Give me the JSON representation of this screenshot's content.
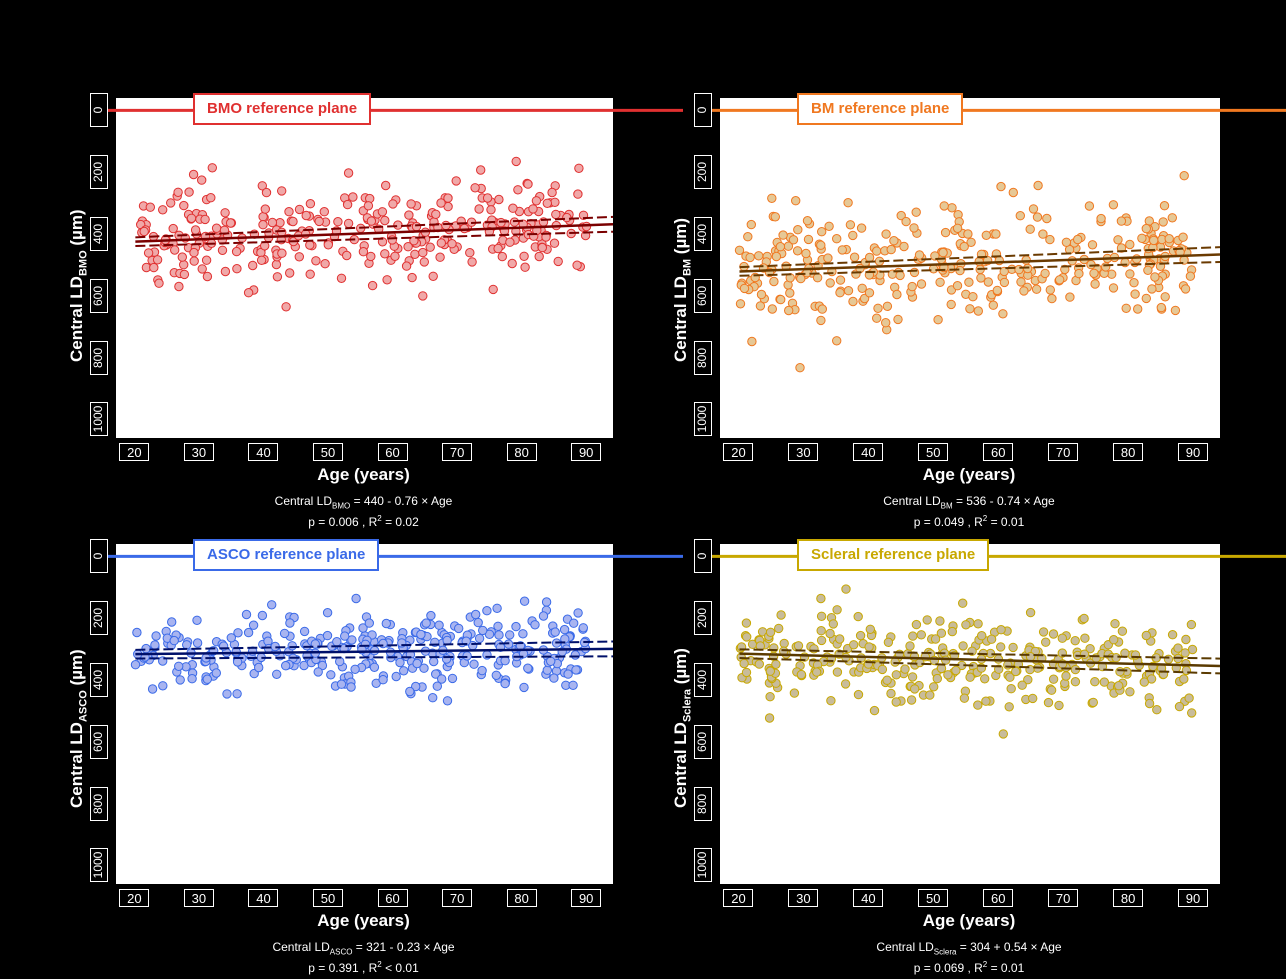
{
  "panels": [
    {
      "ref_label": "BMO reference plane",
      "ylabel_main": "Central LD",
      "ylabel_sub": "BMO",
      "ylabel_unit": " (µm)",
      "xlabel": "Age (years)",
      "eq_prefix": "Central  LD",
      "eq_sub": "BMO",
      "eq_rest": " = 440 - 0.76 × Age",
      "stats_p": "p = 0.006 , R",
      "stats_sup": "2",
      "stats_r": " = 0.02",
      "color": "#e03030",
      "fill": "#f0a8a8",
      "line_color": "#7a0000"
    },
    {
      "ref_label": "BM reference plane",
      "ylabel_main": "Central LD",
      "ylabel_sub": "BM",
      "ylabel_unit": " (µm)",
      "xlabel": "Age (years)",
      "eq_prefix": "Central  LD",
      "eq_sub": "BM",
      "eq_rest": " = 536 - 0.74 × Age",
      "stats_p": "p = 0.049 , R",
      "stats_sup": "2",
      "stats_r": " = 0.01",
      "color": "#f07820",
      "fill": "#e6c896",
      "line_color": "#6a3a00"
    },
    {
      "ref_label": "ASCO reference plane",
      "ylabel_main": "Central LD",
      "ylabel_sub": "ASCO",
      "ylabel_unit": " (µm)",
      "xlabel": "Age (years)",
      "eq_prefix": "Central  LD",
      "eq_sub": "ASCO",
      "eq_rest": " = 321 - 0.23 × Age",
      "stats_p": "p = 0.391 , R",
      "stats_sup": "2",
      "stats_r": " < 0.01",
      "color": "#3a6ae8",
      "fill": "#a8b4f0",
      "line_color": "#00106a"
    },
    {
      "ref_label": "Scleral reference plane",
      "ylabel_main": "Central LD",
      "ylabel_sub": "Sclera",
      "ylabel_unit": " (µm)",
      "xlabel": "Age (years)",
      "eq_prefix": "Central  LD",
      "eq_sub": "Sclera",
      "eq_rest": " = 304 + 0.54 × Age",
      "stats_p": "p = 0.069 , R",
      "stats_sup": "2",
      "stats_r": " = 0.01",
      "color": "#c8a800",
      "fill": "#c8bc9a",
      "line_color": "#5a3a00"
    }
  ],
  "chart_data": [
    {
      "type": "scatter",
      "title": "BMO reference plane",
      "xlabel": "Age (years)",
      "ylabel": "Central LD BMO (µm)",
      "xlim": [
        20,
        90
      ],
      "ylim": [
        0,
        1000
      ],
      "y_inverted": true,
      "reference_line_y": 0,
      "x_ticks": [
        20,
        30,
        40,
        50,
        60,
        70,
        80,
        90
      ],
      "y_ticks": [
        0,
        200,
        400,
        600,
        800,
        1000
      ],
      "regression": {
        "intercept": 440,
        "slope": -0.76,
        "p": 0.006,
        "r2": 0.02
      },
      "point_cloud": {
        "count": 330,
        "seed": 11,
        "sd": 95
      }
    },
    {
      "type": "scatter",
      "title": "BM reference plane",
      "xlabel": "Age (years)",
      "ylabel": "Central LD BM (µm)",
      "xlim": [
        20,
        90
      ],
      "ylim": [
        0,
        1000
      ],
      "y_inverted": true,
      "reference_line_y": 0,
      "x_ticks": [
        20,
        30,
        40,
        50,
        60,
        70,
        80,
        90
      ],
      "y_ticks": [
        0,
        200,
        400,
        600,
        800,
        1000
      ],
      "regression": {
        "intercept": 536,
        "slope": -0.74,
        "p": 0.049,
        "r2": 0.01
      },
      "point_cloud": {
        "count": 330,
        "seed": 23,
        "sd": 120
      }
    },
    {
      "type": "scatter",
      "title": "ASCO reference plane",
      "xlabel": "Age (years)",
      "ylabel": "Central LD ASCO (µm)",
      "xlim": [
        20,
        90
      ],
      "ylim": [
        0,
        1000
      ],
      "y_inverted": true,
      "reference_line_y": 0,
      "x_ticks": [
        20,
        30,
        40,
        50,
        60,
        70,
        80,
        90
      ],
      "y_ticks": [
        0,
        200,
        400,
        600,
        800,
        1000
      ],
      "regression": {
        "intercept": 321,
        "slope": -0.23,
        "p": 0.391,
        "r2": "<0.01"
      },
      "point_cloud": {
        "count": 330,
        "seed": 37,
        "sd": 85
      }
    },
    {
      "type": "scatter",
      "title": "Scleral reference plane",
      "xlabel": "Age (years)",
      "ylabel": "Central LD Sclera (µm)",
      "xlim": [
        20,
        90
      ],
      "ylim": [
        0,
        1000
      ],
      "y_inverted": true,
      "reference_line_y": 0,
      "x_ticks": [
        20,
        30,
        40,
        50,
        60,
        70,
        80,
        90
      ],
      "y_ticks": [
        0,
        200,
        400,
        600,
        800,
        1000
      ],
      "regression": {
        "intercept": 304,
        "slope": 0.54,
        "p": 0.069,
        "r2": 0.01
      },
      "point_cloud": {
        "count": 330,
        "seed": 51,
        "sd": 90
      }
    }
  ]
}
